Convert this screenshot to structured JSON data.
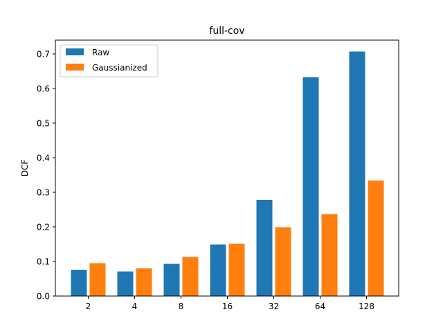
{
  "chart_data": {
    "type": "bar",
    "title": "full-cov",
    "xlabel": "",
    "ylabel": "DCF",
    "categories": [
      "2",
      "4",
      "8",
      "16",
      "32",
      "64",
      "128"
    ],
    "series": [
      {
        "name": "Raw",
        "color": "#1f77b4",
        "values": [
          0.076,
          0.071,
          0.093,
          0.149,
          0.278,
          0.633,
          0.707
        ]
      },
      {
        "name": "Gaussianized",
        "color": "#ff7f0e",
        "values": [
          0.095,
          0.08,
          0.113,
          0.151,
          0.199,
          0.237,
          0.334
        ]
      }
    ],
    "ylim": [
      0,
      0.74
    ],
    "yticks": [
      0.0,
      0.1,
      0.2,
      0.3,
      0.4,
      0.5,
      0.6,
      0.7
    ],
    "ytick_labels": [
      "0.0",
      "0.1",
      "0.2",
      "0.3",
      "0.4",
      "0.5",
      "0.6",
      "0.7"
    ],
    "grid": false,
    "legend_position": "upper-left"
  }
}
